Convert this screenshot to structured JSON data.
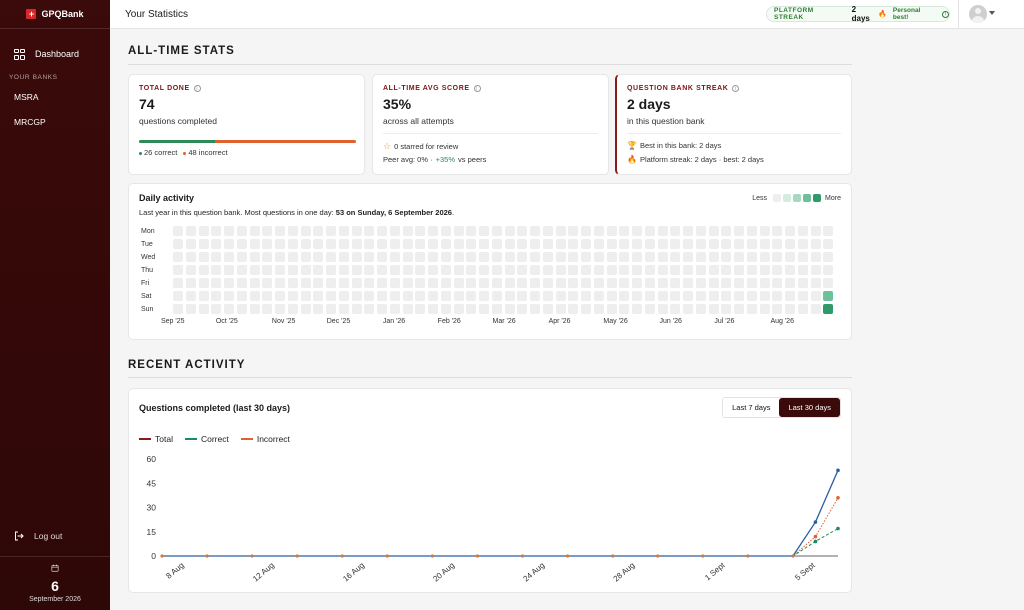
{
  "brand": {
    "name": "GPQBank"
  },
  "sidebar": {
    "dashboard_label": "Dashboard",
    "section_label": "YOUR BANKS",
    "banks": [
      "MSRA",
      "MRCGP"
    ],
    "logout_label": "Log out",
    "date_day": "6",
    "date_month": "September 2026"
  },
  "topbar": {
    "title": "Your Statistics",
    "streak_label": "PLATFORM STREAK",
    "streak_days": "2 days",
    "streak_note": "Personal best!"
  },
  "alltime": {
    "section_title": "ALL-TIME STATS",
    "total": {
      "label": "TOTAL DONE",
      "value": "74",
      "sub": "questions completed",
      "correct_text": "26 correct",
      "incorrect_text": "48 incorrect",
      "correct_fraction": 0.3514
    },
    "avg": {
      "label": "ALL-TIME AVG SCORE",
      "value": "35%",
      "sub": "across all attempts",
      "starred": "0 starred for review",
      "peer_prefix": "Peer avg: 0% ·",
      "peer_delta": "+35%",
      "peer_suffix": "vs peers"
    },
    "streak": {
      "label": "QUESTION BANK STREAK",
      "value": "2 days",
      "sub": "in this question bank",
      "best_line": "Best in this bank: 2 days",
      "platform_line": "Platform streak: 2 days · best: 2 days"
    }
  },
  "heatmap": {
    "title": "Daily activity",
    "sub_prefix": "Last year in this question bank. Most questions in one day:",
    "sub_bold": "53 on Sunday, 6 September 2026",
    "sub_suffix": ".",
    "legend_less": "Less",
    "legend_more": "More",
    "legend_colors": [
      "#eeeeee",
      "#d3ece0",
      "#a8d8c0",
      "#6cc09a",
      "#2e9a6a"
    ],
    "days": [
      "Mon",
      "Tue",
      "Wed",
      "Thu",
      "Fri",
      "Sat",
      "Sun"
    ],
    "months": [
      "Sep '25",
      "Oct '25",
      "Nov '25",
      "Dec '25",
      "Jan '26",
      "Feb '26",
      "Mar '26",
      "Apr '26",
      "May '26",
      "Jun '26",
      "Jul '26",
      "Aug '26"
    ],
    "weeks": 52,
    "active": [
      {
        "week": 51,
        "day": 5,
        "level": 3
      },
      {
        "week": 51,
        "day": 6,
        "level": 4
      }
    ]
  },
  "recent": {
    "section_title": "RECENT ACTIVITY",
    "chart_title": "Questions completed (last 30 days)",
    "range_options": [
      "Last 7 days",
      "Last 30 days"
    ],
    "range_selected": "Last 30 days"
  },
  "chart_data": {
    "type": "line",
    "x": [
      "7 Aug",
      "8 Aug",
      "9 Aug",
      "10 Aug",
      "11 Aug",
      "12 Aug",
      "13 Aug",
      "14 Aug",
      "15 Aug",
      "16 Aug",
      "17 Aug",
      "18 Aug",
      "19 Aug",
      "20 Aug",
      "21 Aug",
      "22 Aug",
      "23 Aug",
      "24 Aug",
      "25 Aug",
      "26 Aug",
      "27 Aug",
      "28 Aug",
      "29 Aug",
      "30 Aug",
      "31 Aug",
      "1 Sept",
      "2 Sept",
      "3 Sept",
      "4 Sept",
      "5 Sept",
      "6 Sept"
    ],
    "x_tick_labels": [
      "8 Aug",
      "12 Aug",
      "16 Aug",
      "20 Aug",
      "24 Aug",
      "28 Aug",
      "1 Sept",
      "5 Sept"
    ],
    "series": [
      {
        "name": "Total",
        "color": "#8b1a1a",
        "values": [
          0,
          0,
          0,
          0,
          0,
          0,
          0,
          0,
          0,
          0,
          0,
          0,
          0,
          0,
          0,
          0,
          0,
          0,
          0,
          0,
          0,
          0,
          0,
          0,
          0,
          0,
          0,
          0,
          0,
          21,
          53
        ]
      },
      {
        "name": "Correct",
        "color": "#1f8a5a",
        "values": [
          0,
          0,
          0,
          0,
          0,
          0,
          0,
          0,
          0,
          0,
          0,
          0,
          0,
          0,
          0,
          0,
          0,
          0,
          0,
          0,
          0,
          0,
          0,
          0,
          0,
          0,
          0,
          0,
          0,
          9,
          17
        ]
      },
      {
        "name": "Incorrect",
        "color": "#e06030",
        "values": [
          0,
          0,
          0,
          0,
          0,
          0,
          0,
          0,
          0,
          0,
          0,
          0,
          0,
          0,
          0,
          0,
          0,
          0,
          0,
          0,
          0,
          0,
          0,
          0,
          0,
          0,
          0,
          0,
          0,
          12,
          36
        ]
      }
    ],
    "y_ticks": [
      0,
      15,
      30,
      45,
      60
    ],
    "ylim": [
      0,
      60
    ],
    "legend": "top-left",
    "grid": false
  }
}
